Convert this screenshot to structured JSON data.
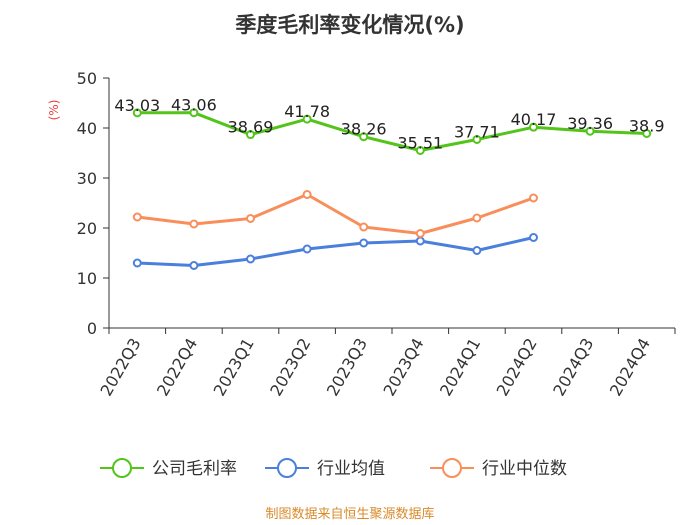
{
  "chart_data": {
    "type": "line",
    "title": "季度毛利率变化情况(%)",
    "ylabel": "(%)",
    "xlabel": "",
    "ylim": [
      0,
      50
    ],
    "yticks": [
      0,
      10,
      20,
      30,
      40,
      50
    ],
    "categories": [
      "2022Q3",
      "2022Q4",
      "2023Q1",
      "2023Q2",
      "2023Q3",
      "2023Q4",
      "2024Q1",
      "2024Q2",
      "2024Q3",
      "2024Q4"
    ],
    "grid": false,
    "legend_position": "bottom",
    "series": [
      {
        "name": "公司毛利率",
        "color": "#52c41a",
        "show_labels": true,
        "values": [
          43.03,
          43.06,
          38.69,
          41.78,
          38.26,
          35.51,
          37.71,
          40.17,
          39.36,
          38.9
        ],
        "labels": [
          "43.03",
          "43.06",
          "38.69",
          "41.78",
          "38.26",
          "35.51",
          "37.71",
          "40.17",
          "39.36",
          "38.9"
        ]
      },
      {
        "name": "行业均值",
        "color": "#4a7fdc",
        "show_labels": false,
        "values": [
          13.0,
          12.5,
          13.8,
          15.8,
          17.0,
          17.4,
          15.5,
          18.1,
          null,
          null
        ]
      },
      {
        "name": "行业中位数",
        "color": "#f98e5a",
        "show_labels": false,
        "values": [
          22.2,
          20.8,
          21.9,
          26.7,
          20.2,
          18.9,
          22.0,
          26.0,
          null,
          null
        ]
      }
    ]
  },
  "source": "制图数据来自恒生聚源数据库"
}
